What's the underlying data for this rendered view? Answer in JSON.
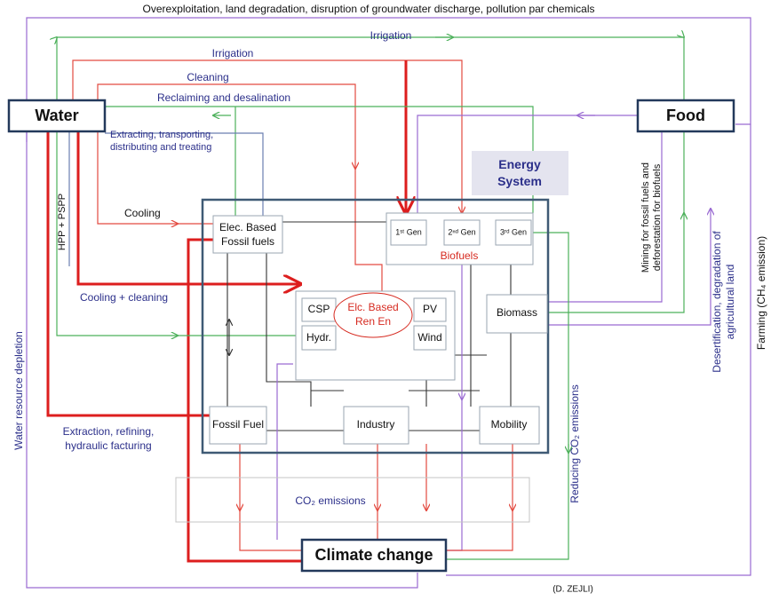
{
  "nodes": {
    "water": "Water",
    "food": "Food",
    "energy_system": [
      "Energy",
      "System"
    ],
    "elec_fossil": [
      "Elec. Based",
      "Fossil fuels"
    ],
    "gen1": "1ˢᵗ Gen",
    "gen2": "2ⁿᵈ Gen",
    "gen3": "3ʳᵈ Gen",
    "biofuels": "Biofuels",
    "ren_en": [
      "Elc. Based",
      "Ren En"
    ],
    "csp": "CSP",
    "pv": "PV",
    "hydr": "Hydr.",
    "wind": "Wind",
    "biomass": "Biomass",
    "fossil_fuel": "Fossil Fuel",
    "industry": "Industry",
    "mobility": "Mobility",
    "co2": "CO₂ emissions",
    "climate": "Climate change"
  },
  "flows": {
    "overexploitation": "Overexploitation, land degradation, disruption of groundwater discharge, pollution par chemicals",
    "irrigation_top": "Irrigation",
    "irrigation_red": "Irrigation",
    "cleaning": "Cleaning",
    "reclaiming": "Reclaiming and desalination",
    "extracting": [
      "Extracting, transporting,",
      "distributing and treating"
    ],
    "cooling": "Cooling",
    "hpp": "HPP + PSPP",
    "cooling_cleaning": "Cooling + cleaning",
    "depletion": "Water resource depletion",
    "extraction": [
      "Extraction, refining,",
      "hydraulic facturing"
    ],
    "reducing": "Reducing CO₂ emissions",
    "mining": [
      "Mining for fossil fuels and",
      "deforestation for biofuels"
    ],
    "desertification": [
      "Desertification, degradation of",
      "agricultural land"
    ],
    "farming": "Farming (CH₄ emission)"
  },
  "credit": "(D. ZEJLI)"
}
